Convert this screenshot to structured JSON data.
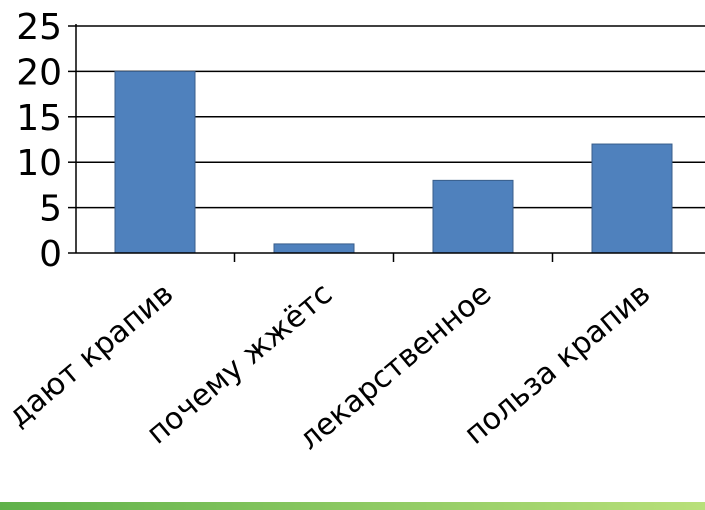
{
  "chart_data": {
    "type": "bar",
    "categories": [
      "дают крапив",
      "почему жжётс",
      "лекарственное",
      "польза крапив"
    ],
    "values": [
      20,
      1,
      8,
      12
    ],
    "ylim": [
      0,
      25
    ],
    "yticks": [
      0,
      5,
      10,
      15,
      20,
      25
    ],
    "grid": true,
    "legend": "none"
  },
  "colors": {
    "bar": "#4f81bd",
    "bar_border": "#385d8a",
    "grid": "#000000",
    "band_start": "#5fb14a",
    "band_end": "#b9e07a"
  }
}
